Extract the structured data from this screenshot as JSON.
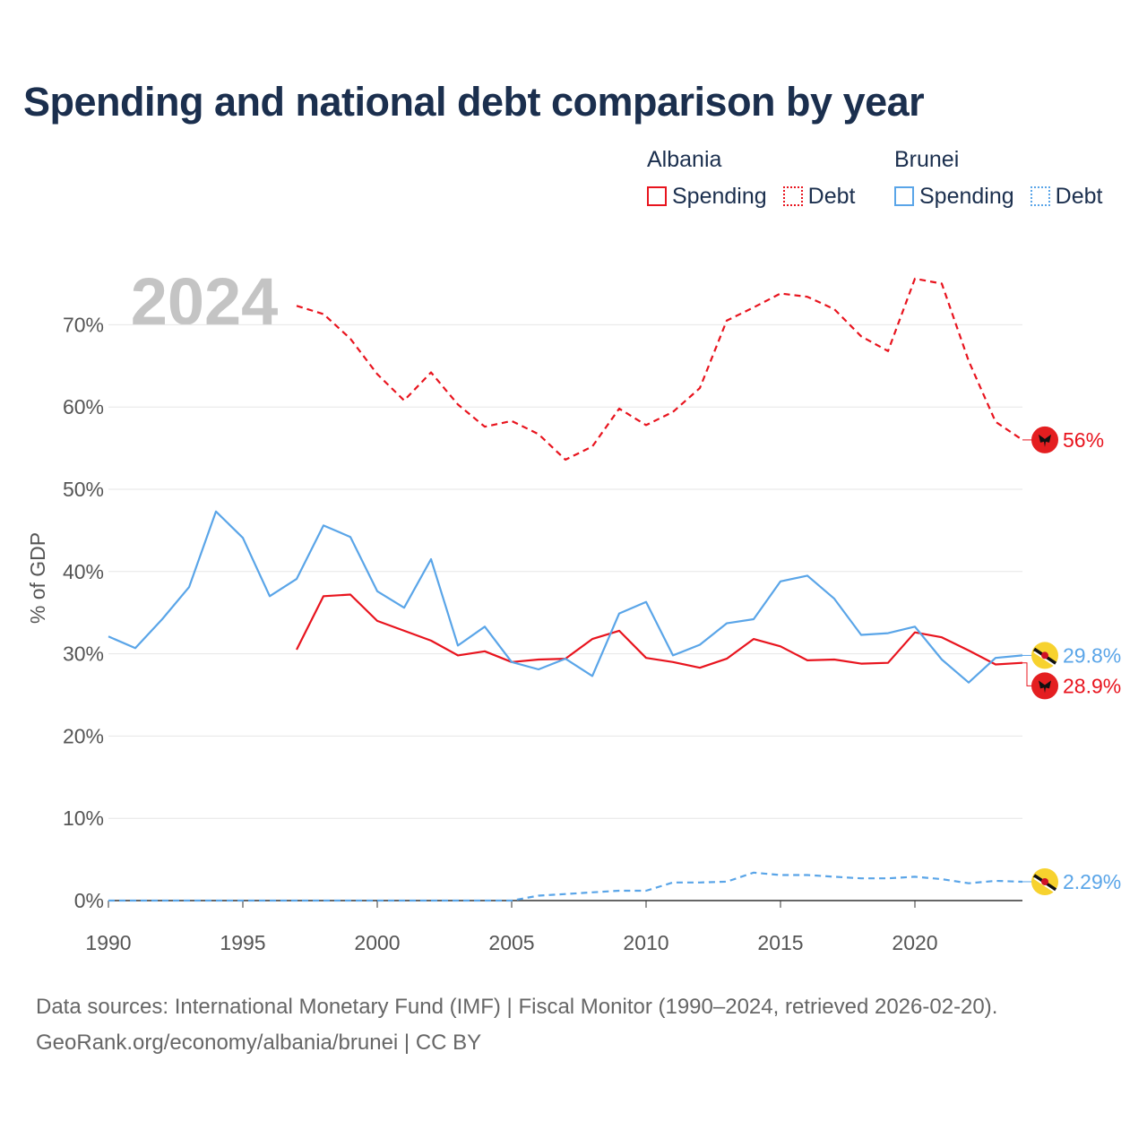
{
  "title": "Spending and national debt comparison by year",
  "legend": {
    "groups": [
      {
        "name": "Albania",
        "color": "#e8141e",
        "items": [
          {
            "label": "Spending",
            "style": "solid"
          },
          {
            "label": "Debt",
            "style": "dotted"
          }
        ]
      },
      {
        "name": "Brunei",
        "color": "#5aa5e8",
        "items": [
          {
            "label": "Spending",
            "style": "solid"
          },
          {
            "label": "Debt",
            "style": "dotted"
          }
        ]
      }
    ]
  },
  "year_label": "2024",
  "footer": {
    "line1": "Data sources: International Monetary Fund (IMF) | Fiscal Monitor (1990–2024, retrieved 2026-02-20).",
    "line2": "GeoRank.org/economy/albania/brunei | CC BY"
  },
  "chart_data": {
    "type": "line",
    "title": "Spending and national debt comparison by year",
    "xlabel": "",
    "ylabel": "% of GDP",
    "xlim": [
      1990,
      2024
    ],
    "ylim": [
      0,
      75
    ],
    "x_ticks": [
      1990,
      1995,
      2000,
      2005,
      2010,
      2015,
      2020
    ],
    "x_tick_labels": [
      "1990",
      "1995",
      "2000",
      "2005",
      "2010",
      "2015",
      "2020"
    ],
    "y_ticks": [
      0,
      10,
      20,
      30,
      40,
      50,
      60,
      70
    ],
    "y_tick_labels": [
      "0%",
      "10%",
      "20%",
      "30%",
      "40%",
      "50%",
      "60%",
      "70%"
    ],
    "grid": true,
    "series": [
      {
        "name": "Albania Spending",
        "country": "Albania",
        "metric": "Spending",
        "color": "#e8141e",
        "dash": "solid",
        "end_label": "28.9%",
        "end_value": 28.9,
        "x": [
          1997,
          1998,
          1999,
          2000,
          2001,
          2002,
          2003,
          2004,
          2005,
          2006,
          2007,
          2008,
          2009,
          2010,
          2011,
          2012,
          2013,
          2014,
          2015,
          2016,
          2017,
          2018,
          2019,
          2020,
          2021,
          2022,
          2023,
          2024
        ],
        "values": [
          30.5,
          37.0,
          37.2,
          34.0,
          32.8,
          31.6,
          29.8,
          30.3,
          29.0,
          29.3,
          29.4,
          31.8,
          32.8,
          29.5,
          29.0,
          28.3,
          29.4,
          31.8,
          30.9,
          29.2,
          29.3,
          28.8,
          28.9,
          32.6,
          32.0,
          30.4,
          28.7,
          28.9
        ]
      },
      {
        "name": "Albania Debt",
        "country": "Albania",
        "metric": "Debt",
        "color": "#e8141e",
        "dash": "dashed",
        "end_label": "56%",
        "end_value": 56,
        "x": [
          1997,
          1998,
          1999,
          2000,
          2001,
          2002,
          2003,
          2004,
          2005,
          2006,
          2007,
          2008,
          2009,
          2010,
          2011,
          2012,
          2013,
          2014,
          2015,
          2016,
          2017,
          2018,
          2019,
          2020,
          2021,
          2022,
          2023,
          2024
        ],
        "values": [
          72.3,
          71.3,
          68.3,
          64.0,
          60.8,
          64.2,
          60.3,
          57.6,
          58.3,
          56.7,
          53.6,
          55.2,
          59.8,
          57.8,
          59.4,
          62.3,
          70.5,
          72.1,
          73.8,
          73.4,
          71.9,
          68.6,
          66.8,
          75.6,
          75.0,
          65.6,
          58.2,
          56.0
        ]
      },
      {
        "name": "Brunei Spending",
        "country": "Brunei",
        "metric": "Spending",
        "color": "#5aa5e8",
        "dash": "solid",
        "end_label": "29.8%",
        "end_value": 29.8,
        "x": [
          1990,
          1991,
          1992,
          1993,
          1994,
          1995,
          1996,
          1997,
          1998,
          1999,
          2000,
          2001,
          2002,
          2003,
          2004,
          2005,
          2006,
          2007,
          2008,
          2009,
          2010,
          2011,
          2012,
          2013,
          2014,
          2015,
          2016,
          2017,
          2018,
          2019,
          2020,
          2021,
          2022,
          2023,
          2024
        ],
        "values": [
          32.1,
          30.7,
          34.2,
          38.1,
          47.3,
          44.1,
          37.0,
          39.1,
          45.6,
          44.2,
          37.6,
          35.6,
          41.5,
          31.0,
          33.3,
          29.0,
          28.1,
          29.4,
          27.3,
          34.9,
          36.3,
          29.8,
          31.1,
          33.7,
          34.2,
          38.8,
          39.5,
          36.7,
          32.3,
          32.5,
          33.3,
          29.3,
          26.5,
          29.5,
          29.8
        ]
      },
      {
        "name": "Brunei Debt",
        "country": "Brunei",
        "metric": "Debt",
        "color": "#5aa5e8",
        "dash": "dashed",
        "end_label": "2.29%",
        "end_value": 2.29,
        "x": [
          1990,
          1991,
          1992,
          1993,
          1994,
          1995,
          1996,
          1997,
          1998,
          1999,
          2000,
          2001,
          2002,
          2003,
          2004,
          2005,
          2006,
          2007,
          2008,
          2009,
          2010,
          2011,
          2012,
          2013,
          2014,
          2015,
          2016,
          2017,
          2018,
          2019,
          2020,
          2021,
          2022,
          2023,
          2024
        ],
        "values": [
          0,
          0,
          0,
          0,
          0,
          0,
          0,
          0,
          0,
          0,
          0,
          0,
          0,
          0,
          0,
          0,
          0.6,
          0.8,
          1.0,
          1.2,
          1.2,
          2.2,
          2.2,
          2.3,
          3.4,
          3.1,
          3.1,
          2.9,
          2.7,
          2.7,
          2.9,
          2.6,
          2.1,
          2.4,
          2.29
        ]
      }
    ]
  }
}
